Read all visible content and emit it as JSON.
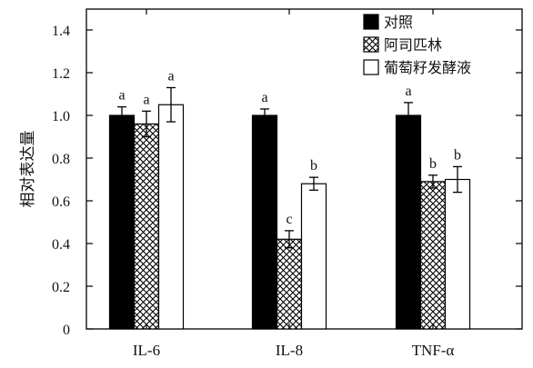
{
  "chart_data": {
    "type": "bar",
    "title": "",
    "xlabel": "",
    "ylabel": "相对表达量",
    "ylim": [
      0,
      1.5
    ],
    "yticks": [
      0,
      0.2,
      0.4,
      0.6,
      0.8,
      1.0,
      1.2,
      1.4
    ],
    "ytick_labels": [
      "0",
      "0.2",
      "0.4",
      "0.6",
      "0.8",
      "1.0",
      "1.2",
      "1.4"
    ],
    "categories": [
      "IL-6",
      "IL-8",
      "TNF-α"
    ],
    "legend_position": "top-right",
    "grid": false,
    "series": [
      {
        "name": "对照",
        "fill": "solid",
        "color": "#000000",
        "values": [
          1.0,
          1.0,
          1.0
        ],
        "errors": [
          0.04,
          0.03,
          0.06
        ],
        "labels": [
          "a",
          "a",
          "a"
        ]
      },
      {
        "name": "阿司匹林",
        "fill": "crosshatch",
        "color": "#000000",
        "values": [
          0.96,
          0.42,
          0.69
        ],
        "errors": [
          0.06,
          0.04,
          0.03
        ],
        "labels": [
          "a",
          "c",
          "b"
        ]
      },
      {
        "name": "葡萄籽发酵液",
        "fill": "white",
        "color": "#000000",
        "values": [
          1.05,
          0.68,
          0.7
        ],
        "errors": [
          0.08,
          0.03,
          0.06
        ],
        "labels": [
          "a",
          "b",
          "b"
        ]
      }
    ]
  }
}
